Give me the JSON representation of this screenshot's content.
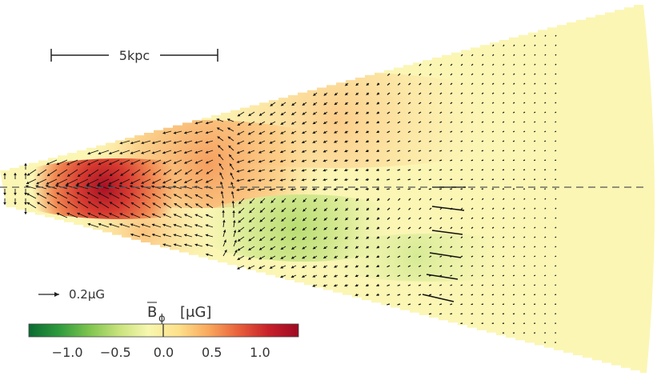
{
  "scale_bar": {
    "label": "5kpc"
  },
  "vector_key": {
    "label": "0.2μG"
  },
  "colorbar": {
    "label_main": "B",
    "label_sub": "ϕ",
    "label_unit": "[μG]",
    "ticks": [
      "−1.0",
      "−0.5",
      "0.0",
      "0.5",
      "1.0"
    ],
    "tick_values": [
      -1.0,
      -0.5,
      0.0,
      0.5,
      1.0
    ],
    "range": [
      -1.4,
      1.4
    ],
    "colors": [
      "#0b6b32",
      "#2e9a3d",
      "#7cc44e",
      "#c8e27c",
      "#f7f7b0",
      "#fde08a",
      "#f9a85c",
      "#e8603b",
      "#c8202a",
      "#9e0a22"
    ]
  },
  "chart_data": {
    "type": "heatmap",
    "title": "",
    "xlabel": "",
    "ylabel": "",
    "quantity": "mean azimuthal magnetic field",
    "unit": "μG",
    "value_range": [
      -1.4,
      1.4
    ],
    "features": [
      {
        "name": "positive maximum",
        "value": 1.3
      },
      {
        "name": "upper arm",
        "value": 0.6
      },
      {
        "name": "negative minimum",
        "value": -0.45
      },
      {
        "name": "outer disc",
        "value": 0.1
      }
    ]
  }
}
